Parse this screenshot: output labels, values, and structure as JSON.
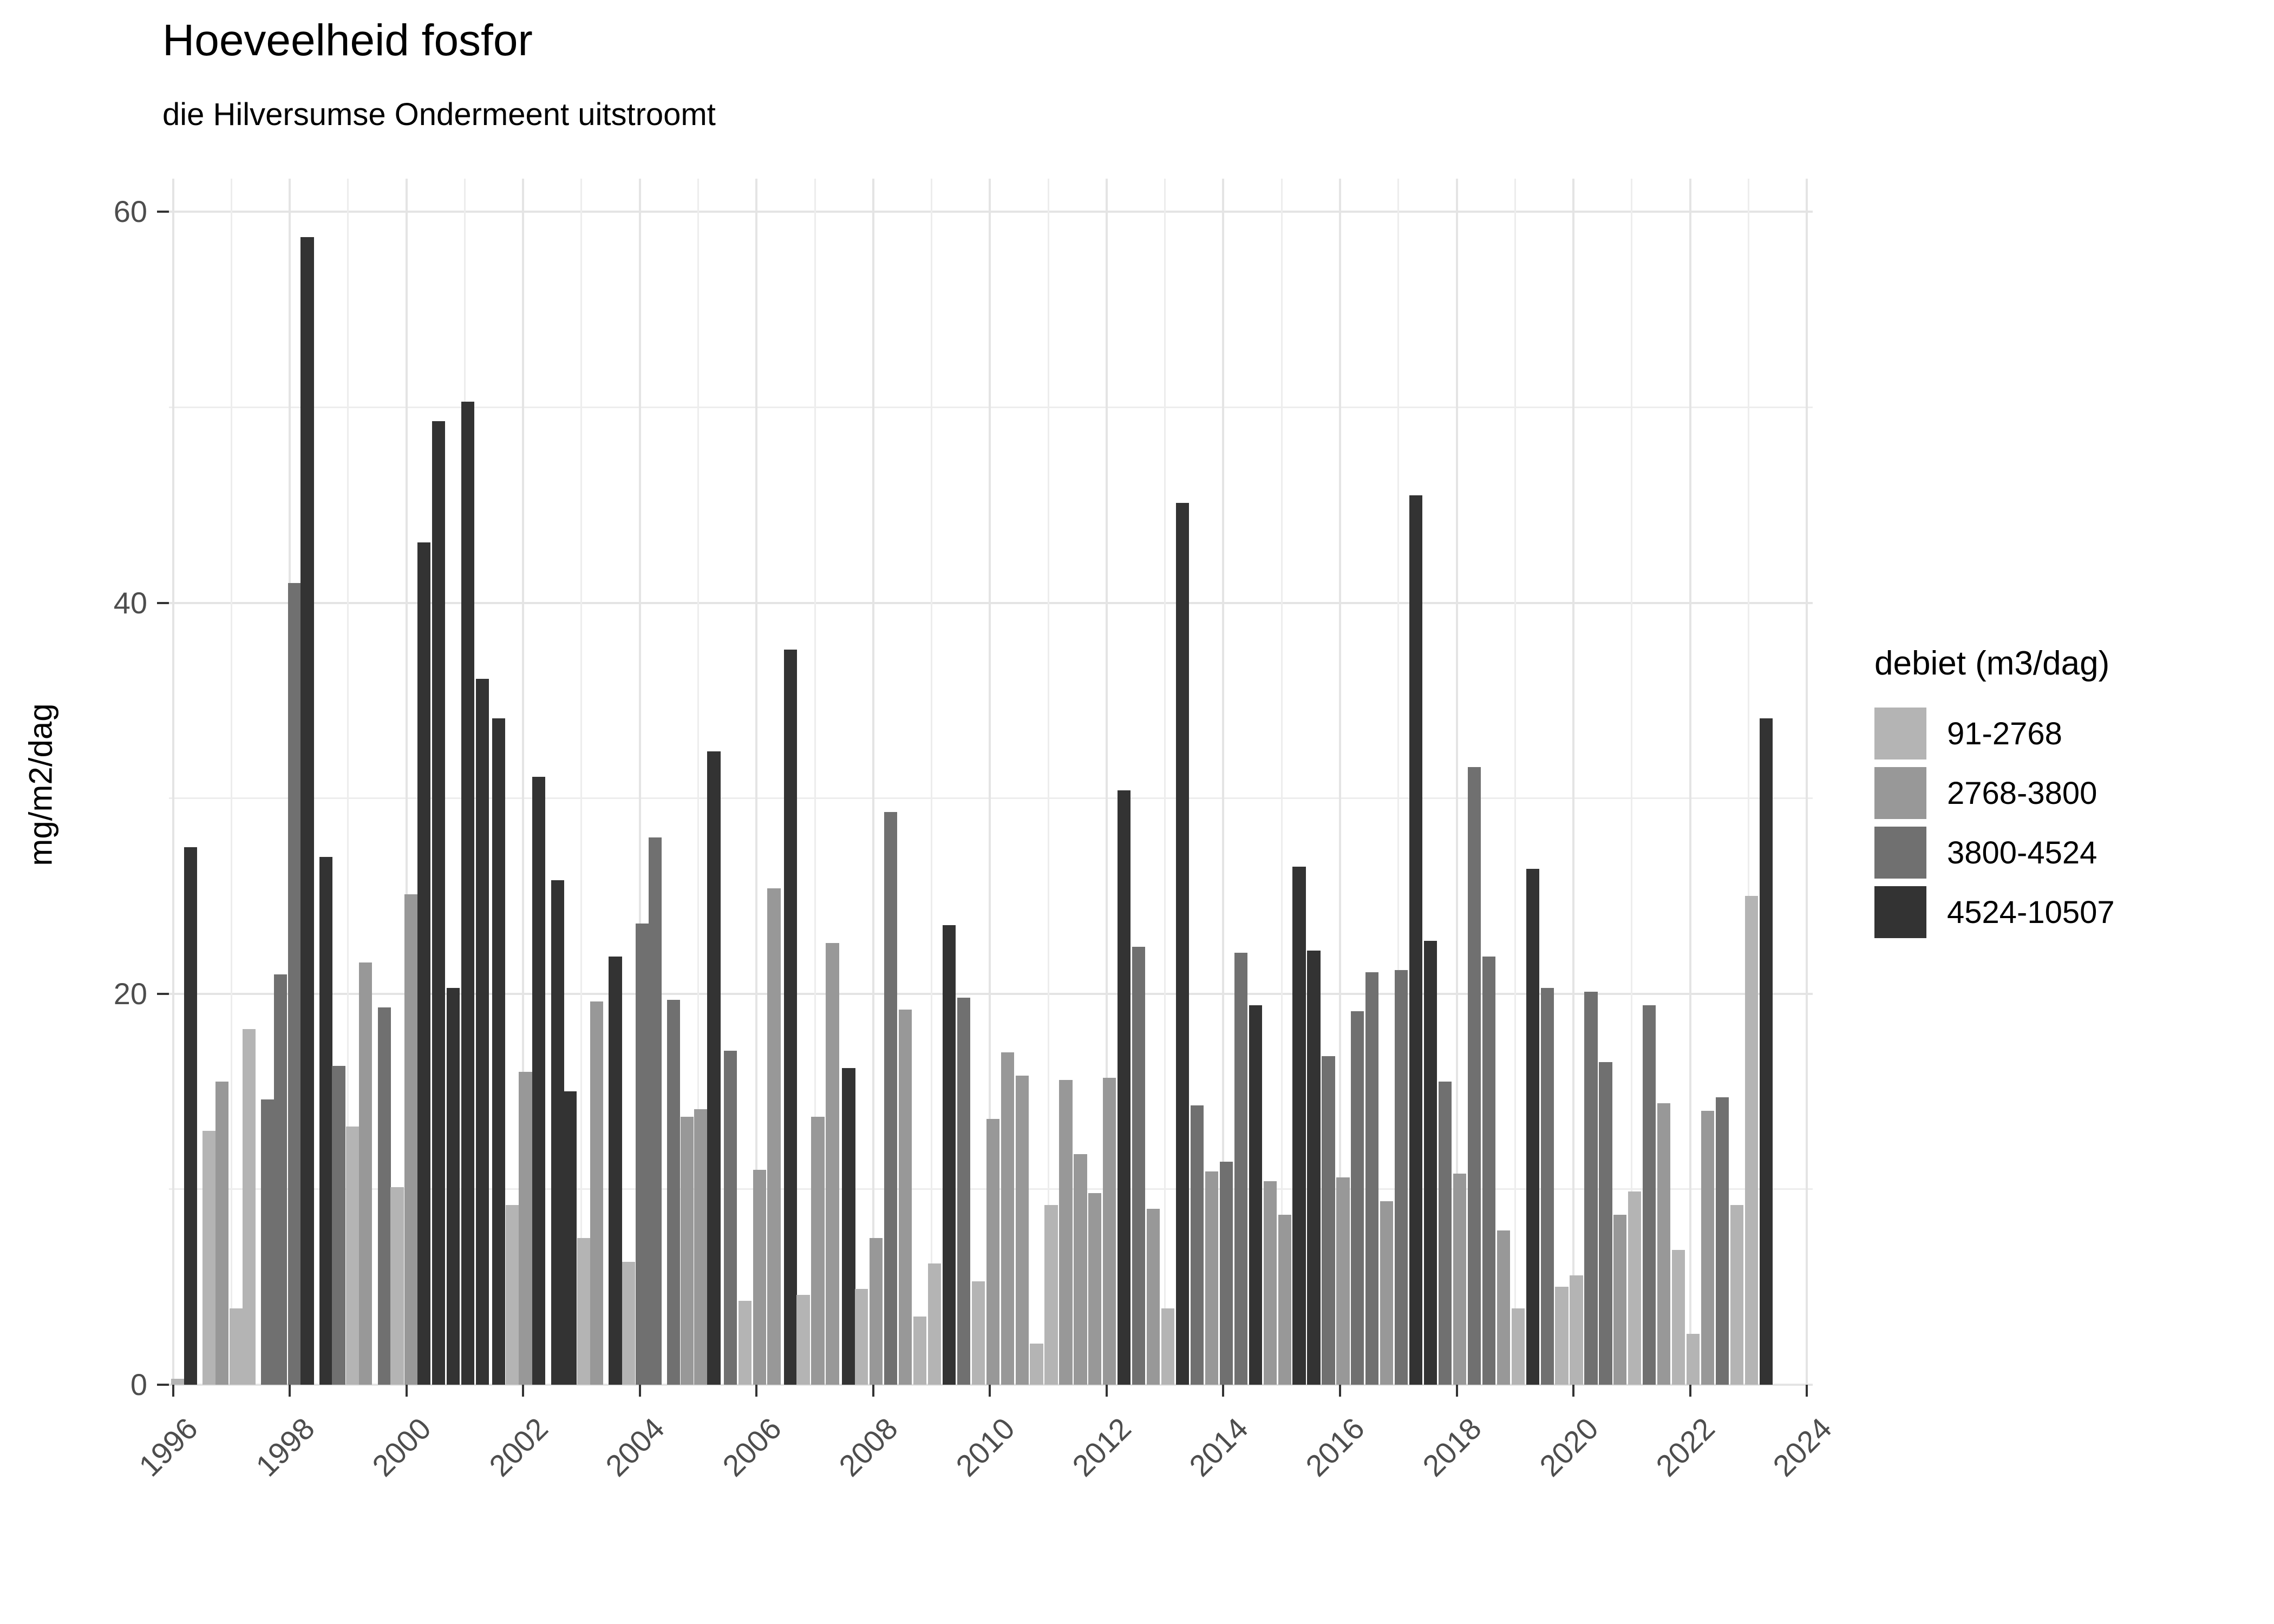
{
  "chart_data": {
    "type": "bar",
    "title": "Hoeveelheid fosfor",
    "subtitle": "die Hilversumse Ondermeent uitstroomt",
    "ylabel": "mg/m2/dag",
    "xlabel": "",
    "ylim": [
      0,
      61.7
    ],
    "xlim": [
      1995.93,
      2024.1
    ],
    "y_ticks": [
      0,
      20,
      40,
      60
    ],
    "y_gridline_step": 10,
    "x_tick_years": [
      1996,
      1998,
      2000,
      2002,
      2004,
      2006,
      2008,
      2010,
      2012,
      2014,
      2016,
      2018,
      2020,
      2022,
      2024
    ],
    "x_gridline_step": 1,
    "grid": "on",
    "legend_position": "right",
    "legend_title": "debiet (m3/dag)",
    "categories": [
      {
        "label": "91-2768",
        "color": "#b4b4b4"
      },
      {
        "label": "2768-3800",
        "color": "#989898"
      },
      {
        "label": "3800-4524",
        "color": "#707070"
      },
      {
        "label": "4524-10507",
        "color": "#333333"
      }
    ],
    "bar_width_years": 0.225,
    "bars": [
      {
        "x": 1996.08,
        "v": 0.3,
        "c": 0
      },
      {
        "x": 1996.3,
        "v": 27.5,
        "c": 3
      },
      {
        "x": 1996.62,
        "v": 13.0,
        "c": 0
      },
      {
        "x": 1996.84,
        "v": 15.5,
        "c": 1
      },
      {
        "x": 1997.08,
        "v": 3.9,
        "c": 0
      },
      {
        "x": 1997.3,
        "v": 18.2,
        "c": 0
      },
      {
        "x": 1997.62,
        "v": 14.6,
        "c": 2
      },
      {
        "x": 1997.84,
        "v": 21.0,
        "c": 2
      },
      {
        "x": 1998.08,
        "v": 41.0,
        "c": 2
      },
      {
        "x": 1998.3,
        "v": 58.7,
        "c": 3
      },
      {
        "x": 1998.62,
        "v": 27.0,
        "c": 3
      },
      {
        "x": 1998.84,
        "v": 16.3,
        "c": 2
      },
      {
        "x": 1999.08,
        "v": 13.2,
        "c": 0
      },
      {
        "x": 1999.3,
        "v": 21.6,
        "c": 1
      },
      {
        "x": 1999.62,
        "v": 19.3,
        "c": 2
      },
      {
        "x": 1999.84,
        "v": 10.1,
        "c": 0
      },
      {
        "x": 2000.08,
        "v": 25.1,
        "c": 1
      },
      {
        "x": 2000.3,
        "v": 43.1,
        "c": 3
      },
      {
        "x": 2000.55,
        "v": 49.3,
        "c": 3
      },
      {
        "x": 2000.8,
        "v": 20.3,
        "c": 3
      },
      {
        "x": 2001.05,
        "v": 50.3,
        "c": 3
      },
      {
        "x": 2001.3,
        "v": 36.1,
        "c": 3
      },
      {
        "x": 2001.58,
        "v": 34.1,
        "c": 3
      },
      {
        "x": 2001.81,
        "v": 9.2,
        "c": 0
      },
      {
        "x": 2002.04,
        "v": 16.0,
        "c": 1
      },
      {
        "x": 2002.27,
        "v": 31.1,
        "c": 3
      },
      {
        "x": 2002.59,
        "v": 25.8,
        "c": 3
      },
      {
        "x": 2002.8,
        "v": 15.0,
        "c": 3
      },
      {
        "x": 2003.04,
        "v": 7.5,
        "c": 0
      },
      {
        "x": 2003.26,
        "v": 19.6,
        "c": 1
      },
      {
        "x": 2003.58,
        "v": 21.9,
        "c": 3
      },
      {
        "x": 2003.81,
        "v": 6.3,
        "c": 0
      },
      {
        "x": 2004.04,
        "v": 23.6,
        "c": 2
      },
      {
        "x": 2004.26,
        "v": 28.0,
        "c": 2
      },
      {
        "x": 2004.58,
        "v": 19.7,
        "c": 2
      },
      {
        "x": 2004.81,
        "v": 13.7,
        "c": 1
      },
      {
        "x": 2005.04,
        "v": 14.1,
        "c": 1
      },
      {
        "x": 2005.27,
        "v": 32.4,
        "c": 3
      },
      {
        "x": 2005.55,
        "v": 17.1,
        "c": 2
      },
      {
        "x": 2005.8,
        "v": 4.3,
        "c": 0
      },
      {
        "x": 2006.05,
        "v": 11.0,
        "c": 1
      },
      {
        "x": 2006.3,
        "v": 25.4,
        "c": 1
      },
      {
        "x": 2006.58,
        "v": 37.6,
        "c": 3
      },
      {
        "x": 2006.8,
        "v": 4.6,
        "c": 0
      },
      {
        "x": 2007.05,
        "v": 13.7,
        "c": 1
      },
      {
        "x": 2007.3,
        "v": 22.6,
        "c": 1
      },
      {
        "x": 2007.58,
        "v": 16.2,
        "c": 3
      },
      {
        "x": 2007.8,
        "v": 4.9,
        "c": 0
      },
      {
        "x": 2008.05,
        "v": 7.5,
        "c": 1
      },
      {
        "x": 2008.3,
        "v": 29.3,
        "c": 2
      },
      {
        "x": 2008.55,
        "v": 19.2,
        "c": 1
      },
      {
        "x": 2008.8,
        "v": 3.5,
        "c": 0
      },
      {
        "x": 2009.05,
        "v": 6.2,
        "c": 0
      },
      {
        "x": 2009.3,
        "v": 23.5,
        "c": 3
      },
      {
        "x": 2009.55,
        "v": 19.8,
        "c": 2
      },
      {
        "x": 2009.8,
        "v": 5.3,
        "c": 0
      },
      {
        "x": 2010.05,
        "v": 13.6,
        "c": 1
      },
      {
        "x": 2010.3,
        "v": 17.0,
        "c": 1
      },
      {
        "x": 2010.55,
        "v": 15.8,
        "c": 1
      },
      {
        "x": 2010.8,
        "v": 2.1,
        "c": 0
      },
      {
        "x": 2011.05,
        "v": 9.2,
        "c": 0
      },
      {
        "x": 2011.3,
        "v": 15.6,
        "c": 1
      },
      {
        "x": 2011.55,
        "v": 11.8,
        "c": 1
      },
      {
        "x": 2011.8,
        "v": 9.8,
        "c": 1
      },
      {
        "x": 2012.05,
        "v": 15.7,
        "c": 1
      },
      {
        "x": 2012.3,
        "v": 30.4,
        "c": 3
      },
      {
        "x": 2012.55,
        "v": 22.4,
        "c": 2
      },
      {
        "x": 2012.8,
        "v": 9.0,
        "c": 1
      },
      {
        "x": 2013.05,
        "v": 3.9,
        "c": 0
      },
      {
        "x": 2013.3,
        "v": 45.1,
        "c": 3
      },
      {
        "x": 2013.55,
        "v": 14.3,
        "c": 2
      },
      {
        "x": 2013.8,
        "v": 10.9,
        "c": 1
      },
      {
        "x": 2014.05,
        "v": 11.4,
        "c": 2
      },
      {
        "x": 2014.3,
        "v": 22.1,
        "c": 2
      },
      {
        "x": 2014.55,
        "v": 19.4,
        "c": 3
      },
      {
        "x": 2014.8,
        "v": 10.4,
        "c": 1
      },
      {
        "x": 2015.05,
        "v": 8.7,
        "c": 1
      },
      {
        "x": 2015.3,
        "v": 26.5,
        "c": 3
      },
      {
        "x": 2015.55,
        "v": 22.2,
        "c": 3
      },
      {
        "x": 2015.8,
        "v": 16.8,
        "c": 2
      },
      {
        "x": 2016.05,
        "v": 10.6,
        "c": 1
      },
      {
        "x": 2016.3,
        "v": 19.1,
        "c": 2
      },
      {
        "x": 2016.55,
        "v": 21.1,
        "c": 2
      },
      {
        "x": 2016.8,
        "v": 9.4,
        "c": 1
      },
      {
        "x": 2017.05,
        "v": 21.2,
        "c": 2
      },
      {
        "x": 2017.3,
        "v": 45.5,
        "c": 3
      },
      {
        "x": 2017.55,
        "v": 22.7,
        "c": 3
      },
      {
        "x": 2017.8,
        "v": 15.5,
        "c": 2
      },
      {
        "x": 2018.05,
        "v": 10.8,
        "c": 1
      },
      {
        "x": 2018.3,
        "v": 31.6,
        "c": 2
      },
      {
        "x": 2018.55,
        "v": 21.9,
        "c": 2
      },
      {
        "x": 2018.8,
        "v": 7.9,
        "c": 1
      },
      {
        "x": 2019.05,
        "v": 3.9,
        "c": 0
      },
      {
        "x": 2019.3,
        "v": 26.4,
        "c": 3
      },
      {
        "x": 2019.55,
        "v": 20.3,
        "c": 2
      },
      {
        "x": 2019.8,
        "v": 5.0,
        "c": 0
      },
      {
        "x": 2020.05,
        "v": 5.6,
        "c": 0
      },
      {
        "x": 2020.3,
        "v": 20.1,
        "c": 2
      },
      {
        "x": 2020.55,
        "v": 16.5,
        "c": 2
      },
      {
        "x": 2020.8,
        "v": 8.7,
        "c": 1
      },
      {
        "x": 2021.05,
        "v": 9.9,
        "c": 0
      },
      {
        "x": 2021.3,
        "v": 19.4,
        "c": 2
      },
      {
        "x": 2021.55,
        "v": 14.4,
        "c": 1
      },
      {
        "x": 2021.8,
        "v": 6.9,
        "c": 0
      },
      {
        "x": 2022.05,
        "v": 2.6,
        "c": 0
      },
      {
        "x": 2022.3,
        "v": 14.0,
        "c": 1
      },
      {
        "x": 2022.55,
        "v": 14.7,
        "c": 2
      },
      {
        "x": 2022.8,
        "v": 9.2,
        "c": 0
      },
      {
        "x": 2023.05,
        "v": 25.0,
        "c": 0
      },
      {
        "x": 2023.3,
        "v": 34.1,
        "c": 3
      }
    ]
  },
  "axis_style": {
    "tick_color": "#333333",
    "tick_label_color": "#4d4d4d"
  }
}
